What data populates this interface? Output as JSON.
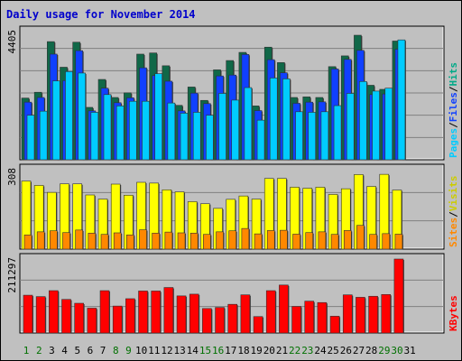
{
  "chart_data": {
    "type": "bar",
    "title": "Daily usage for November 2014",
    "categories": [
      "1",
      "2",
      "3",
      "4",
      "5",
      "6",
      "7",
      "8",
      "9",
      "10",
      "11",
      "12",
      "13",
      "14",
      "15",
      "16",
      "17",
      "18",
      "19",
      "20",
      "21",
      "22",
      "23",
      "24",
      "25",
      "26",
      "27",
      "28",
      "29",
      "30",
      "31"
    ],
    "weekend_days": [
      1,
      2,
      8,
      9,
      15,
      16,
      22,
      23,
      29,
      30
    ],
    "colors": {
      "background": "#c0c0c0",
      "day_label": "#000000",
      "weekend_label": "#007000",
      "title": "#0000cc",
      "pages": "#00ccff",
      "files": "#1040ff",
      "hits": "#106848",
      "visits": "#ffff00",
      "sites": "#ff8800",
      "kbytes": "#ff0000"
    },
    "panels": [
      {
        "id": "hits",
        "ymax": 4405,
        "max_label": "4405",
        "legend": [
          {
            "label": "Hits",
            "color": "#00aa88"
          },
          {
            "label": "/",
            "color": "#000000"
          },
          {
            "label": "Files",
            "color": "#1040ff"
          },
          {
            "label": "/",
            "color": "#000000"
          },
          {
            "label": "Pages",
            "color": "#00ccff"
          }
        ],
        "series": [
          {
            "name": "Hits",
            "color": "#106848",
            "values": [
              2120,
              2320,
              4060,
              3180,
              4040,
              1800,
              2760,
              2140,
              2300,
              3630,
              3670,
              3230,
              1870,
              2500,
              2040,
              3090,
              3410,
              3690,
              1850,
              3870,
              3340,
              2140,
              2160,
              2140,
              3200,
              3570,
              4280,
              2560,
              2420,
              4080,
              0
            ]
          },
          {
            "name": "Files",
            "color": "#1040ff",
            "values": [
              1980,
              2140,
              3630,
              2720,
              3750,
              1680,
              2460,
              1960,
              2130,
              3160,
              2890,
              2700,
              1680,
              2290,
              1930,
              2880,
              2910,
              3620,
              1690,
              3440,
              2990,
              1940,
              1980,
              1990,
              3120,
              3450,
              3760,
              2240,
              2260,
              3800,
              0
            ]
          },
          {
            "name": "Pages",
            "color": "#00ccff",
            "values": [
              1530,
              1670,
              2710,
              3030,
              2980,
              1630,
              2240,
              1850,
              2010,
              2010,
              2960,
              1950,
              1600,
              1630,
              1530,
              2280,
              2050,
              2480,
              1360,
              2810,
              2780,
              1650,
              1630,
              1650,
              1860,
              2280,
              2690,
              2360,
              2460,
              4120,
              0
            ]
          }
        ]
      },
      {
        "id": "visits",
        "ymax": 308,
        "max_label": "308",
        "legend": [
          {
            "label": "Visits",
            "color": "#cccc00"
          },
          {
            "label": "/",
            "color": "#000000"
          },
          {
            "label": "Sites",
            "color": "#ff8800"
          }
        ],
        "series": [
          {
            "name": "Visits",
            "color": "#ffff00",
            "values": [
              264,
              247,
              220,
              253,
              253,
              210,
              194,
              252,
              209,
              259,
              256,
              230,
              222,
              184,
              176,
              158,
              193,
              206,
              194,
              274,
              274,
              240,
              236,
              240,
              212,
              234,
              289,
              243,
              290,
              229,
              0
            ]
          },
          {
            "name": "Sites",
            "color": "#ff8800",
            "values": [
              55,
              67,
              71,
              64,
              74,
              62,
              57,
              63,
              55,
              75,
              62,
              66,
              63,
              62,
              57,
              67,
              71,
              80,
              59,
              72,
              73,
              58,
              64,
              67,
              57,
              72,
              92,
              57,
              60,
              58,
              0
            ]
          }
        ]
      },
      {
        "id": "kbytes",
        "ymax": 211297,
        "max_label": "211297",
        "legend": [
          {
            "label": "KBytes",
            "color": "#ff0000"
          }
        ],
        "series": [
          {
            "name": "KBytes",
            "color": "#ff0000",
            "values": [
              108000,
              104000,
              121000,
              96000,
              85000,
              71000,
              121000,
              77000,
              98000,
              120000,
              120000,
              130000,
              106000,
              111000,
              70000,
              73000,
              82000,
              109000,
              47000,
              121000,
              137000,
              76000,
              91000,
              87000,
              48000,
              109000,
              102000,
              105000,
              110000,
              211297,
              0
            ]
          }
        ]
      }
    ]
  }
}
